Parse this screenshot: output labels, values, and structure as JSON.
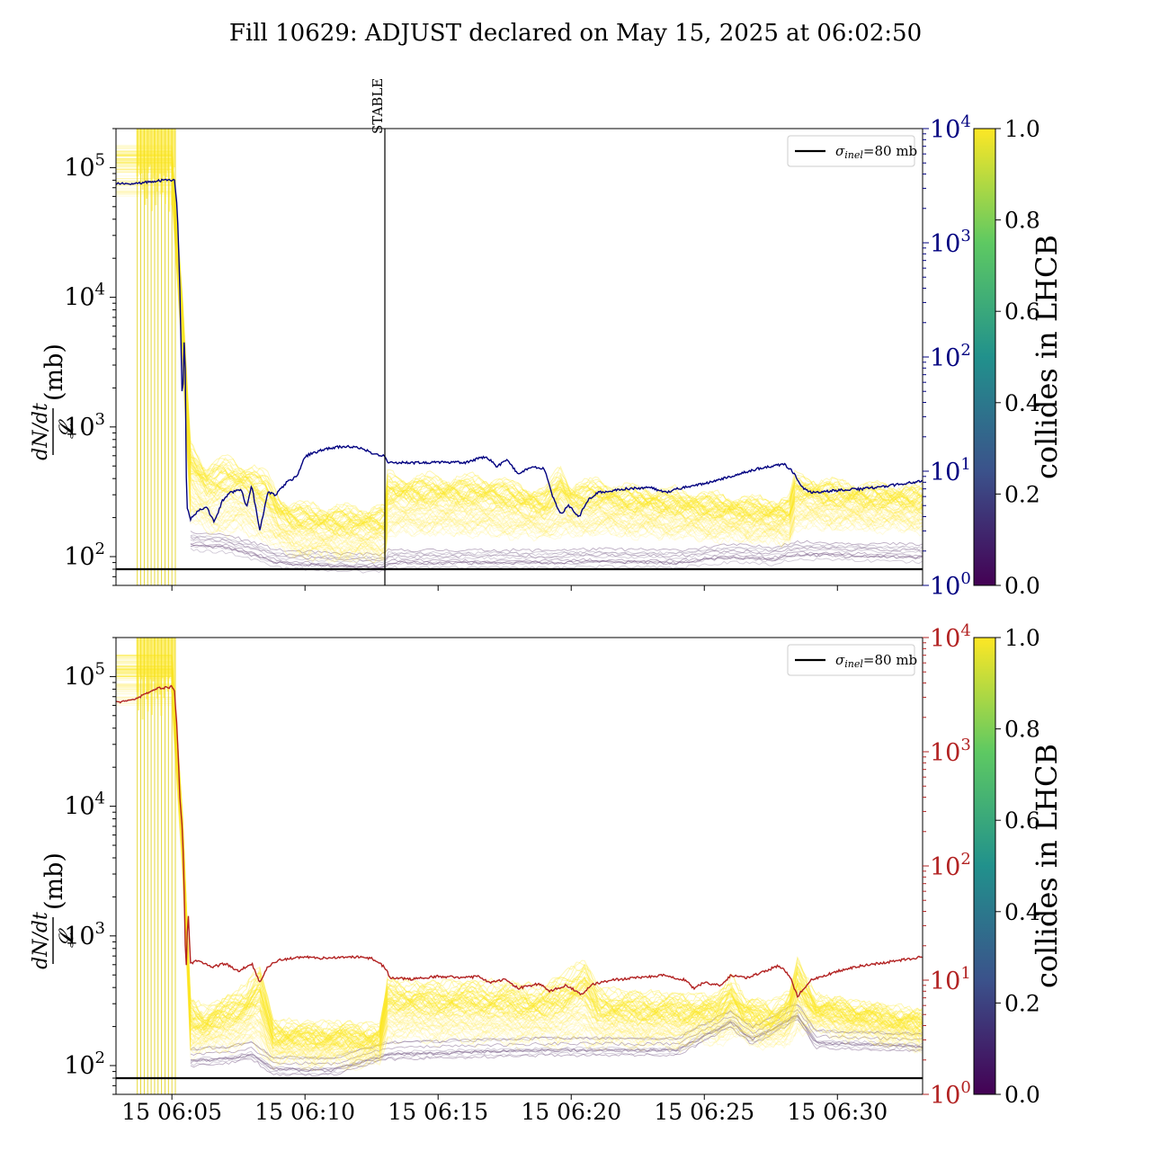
{
  "title": "Fill 10629: ADJUST declared on May 15, 2025 at 06:02:50",
  "colors": {
    "top_luminosity_line": "#000080",
    "bottom_luminosity_line": "#b22222",
    "reference_line": "#000000",
    "bunch_colormap_high": "#fde725",
    "bunch_colormap_low": "#440154",
    "stable_marker": "#000000"
  },
  "colorbar": {
    "label": "collides in LHCB",
    "ticks": [
      "0.0",
      "0.2",
      "0.4",
      "0.6",
      "0.8",
      "1.0"
    ],
    "colormap": "viridis"
  },
  "chart_data": [
    {
      "type": "line",
      "panel": "top",
      "ylabel_fraction_num": "dN/dt",
      "ylabel_fraction_den": "𝓛",
      "ylabel_unit": "(mb)",
      "yscale": "log",
      "ylim": [
        60,
        200000
      ],
      "y_ticks": [
        {
          "value": 100,
          "base": "10",
          "exp": "2"
        },
        {
          "value": 1000,
          "base": "10",
          "exp": "3"
        },
        {
          "value": 10000,
          "base": "10",
          "exp": "4"
        },
        {
          "value": 100000,
          "base": "10",
          "exp": "5"
        }
      ],
      "y2scale": "log",
      "y2lim": [
        1,
        10000
      ],
      "y2_color": "#000080",
      "y2_ticks": [
        {
          "value": 1,
          "base": "10",
          "exp": "0"
        },
        {
          "value": 10,
          "base": "10",
          "exp": "1"
        },
        {
          "value": 100,
          "base": "10",
          "exp": "2"
        },
        {
          "value": 1000,
          "base": "10",
          "exp": "3"
        },
        {
          "value": 10000,
          "base": "10",
          "exp": "4"
        }
      ],
      "xlim_minutes": [
        2.9,
        33.2
      ],
      "x_ticks": [
        {
          "minute": 5,
          "label": ""
        },
        {
          "minute": 10,
          "label": ""
        },
        {
          "minute": 15,
          "label": ""
        },
        {
          "minute": 20,
          "label": ""
        },
        {
          "minute": 25,
          "label": ""
        },
        {
          "minute": 30,
          "label": ""
        }
      ],
      "reference_line": {
        "y": 80,
        "legend": "σ_inel=80 mb",
        "legend_main": "σ",
        "legend_sub": "inel",
        "legend_rest": "=80 mb"
      },
      "vertical_marker": {
        "minute": 13.0,
        "label": "STABLE"
      },
      "luminosity_series_y2": [
        [
          2.9,
          3300
        ],
        [
          3.5,
          3250
        ],
        [
          4.0,
          3400
        ],
        [
          4.5,
          3500
        ],
        [
          5.0,
          3550
        ],
        [
          5.1,
          3500
        ],
        [
          5.2,
          2000
        ],
        [
          5.3,
          400
        ],
        [
          5.4,
          30
        ],
        [
          5.45,
          150
        ],
        [
          5.5,
          80
        ],
        [
          5.55,
          5
        ],
        [
          5.7,
          3.8
        ],
        [
          6.0,
          4.5
        ],
        [
          6.3,
          4.8
        ],
        [
          6.6,
          3.6
        ],
        [
          6.9,
          5.5
        ],
        [
          7.2,
          6.5
        ],
        [
          7.6,
          7.0
        ],
        [
          7.8,
          4.8
        ],
        [
          8.0,
          7.5
        ],
        [
          8.3,
          3.0
        ],
        [
          8.6,
          6.5
        ],
        [
          8.9,
          6.2
        ],
        [
          9.3,
          8.0
        ],
        [
          9.7,
          9.0
        ],
        [
          10.0,
          13.5
        ],
        [
          10.5,
          15.0
        ],
        [
          11.0,
          16.0
        ],
        [
          11.5,
          16.5
        ],
        [
          12.0,
          16.2
        ],
        [
          12.5,
          14.5
        ],
        [
          13.0,
          13.5
        ],
        [
          13.1,
          12.0
        ],
        [
          14.0,
          11.8
        ],
        [
          15.0,
          12.0
        ],
        [
          16.0,
          11.9
        ],
        [
          16.8,
          13.5
        ],
        [
          17.2,
          11.0
        ],
        [
          17.6,
          12.5
        ],
        [
          18.0,
          9.5
        ],
        [
          18.5,
          11.0
        ],
        [
          19.0,
          10.5
        ],
        [
          19.3,
          6.0
        ],
        [
          19.6,
          4.2
        ],
        [
          19.9,
          5.0
        ],
        [
          20.3,
          4.0
        ],
        [
          20.6,
          5.5
        ],
        [
          21.0,
          6.5
        ],
        [
          22.0,
          7.0
        ],
        [
          23.0,
          7.2
        ],
        [
          23.5,
          6.5
        ],
        [
          24.0,
          7.0
        ],
        [
          25.0,
          7.8
        ],
        [
          26.0,
          9.0
        ],
        [
          27.0,
          10.5
        ],
        [
          28.0,
          11.5
        ],
        [
          28.3,
          10.0
        ],
        [
          28.7,
          7.2
        ],
        [
          29.0,
          6.5
        ],
        [
          30.0,
          6.8
        ],
        [
          31.0,
          7.0
        ],
        [
          32.0,
          7.5
        ],
        [
          33.2,
          8.2
        ]
      ],
      "bunch_band_typical": [
        [
          2.9,
          120000
        ],
        [
          5.0,
          120000
        ],
        [
          5.4,
          8000
        ],
        [
          5.7,
          600
        ],
        [
          6.3,
          400
        ],
        [
          7.0,
          450
        ],
        [
          8.0,
          400
        ],
        [
          8.6,
          330
        ],
        [
          9.0,
          230
        ],
        [
          9.5,
          200
        ],
        [
          10.5,
          190
        ],
        [
          12.0,
          185
        ],
        [
          13.0,
          190
        ],
        [
          13.1,
          330
        ],
        [
          15.0,
          320
        ],
        [
          17.0,
          320
        ],
        [
          18.0,
          280
        ],
        [
          19.0,
          250
        ],
        [
          19.6,
          380
        ],
        [
          20.0,
          280
        ],
        [
          21.0,
          300
        ],
        [
          22.0,
          270
        ],
        [
          24.0,
          250
        ],
        [
          25.5,
          230
        ],
        [
          26.5,
          220
        ],
        [
          27.5,
          210
        ],
        [
          28.2,
          220
        ],
        [
          28.4,
          330
        ],
        [
          29.5,
          300
        ],
        [
          31.0,
          280
        ],
        [
          33.2,
          270
        ]
      ],
      "bunch_band_low": [
        [
          2.9,
          60000
        ],
        [
          5.0,
          60000
        ],
        [
          5.4,
          3000
        ],
        [
          5.7,
          200
        ],
        [
          6.5,
          160
        ],
        [
          7.5,
          170
        ],
        [
          8.5,
          140
        ],
        [
          9.5,
          110
        ],
        [
          11.0,
          100
        ],
        [
          13.0,
          100
        ],
        [
          13.1,
          160
        ],
        [
          16.0,
          160
        ],
        [
          19.0,
          150
        ],
        [
          21.0,
          160
        ],
        [
          24.0,
          150
        ],
        [
          27.0,
          140
        ],
        [
          28.2,
          135
        ],
        [
          28.4,
          180
        ],
        [
          33.2,
          170
        ]
      ],
      "non_colliding_band": [
        [
          5.7,
          130
        ],
        [
          7.0,
          125
        ],
        [
          8.0,
          110
        ],
        [
          9.0,
          95
        ],
        [
          11.0,
          90
        ],
        [
          13.0,
          88
        ],
        [
          13.1,
          95
        ],
        [
          16.0,
          95
        ],
        [
          19.0,
          95
        ],
        [
          21.0,
          97
        ],
        [
          24.0,
          95
        ],
        [
          26.0,
          105
        ],
        [
          27.5,
          100
        ],
        [
          28.4,
          110
        ],
        [
          33.2,
          105
        ]
      ]
    },
    {
      "type": "line",
      "panel": "bottom",
      "ylabel_fraction_num": "dN/dt",
      "ylabel_fraction_den": "𝓛",
      "ylabel_unit": "(mb)",
      "yscale": "log",
      "ylim": [
        60,
        200000
      ],
      "y_ticks": [
        {
          "value": 100,
          "base": "10",
          "exp": "2"
        },
        {
          "value": 1000,
          "base": "10",
          "exp": "3"
        },
        {
          "value": 10000,
          "base": "10",
          "exp": "4"
        },
        {
          "value": 100000,
          "base": "10",
          "exp": "5"
        }
      ],
      "y2scale": "log",
      "y2lim": [
        1,
        10000
      ],
      "y2_color": "#b22222",
      "y2_ticks": [
        {
          "value": 1,
          "base": "10",
          "exp": "0"
        },
        {
          "value": 10,
          "base": "10",
          "exp": "1"
        },
        {
          "value": 100,
          "base": "10",
          "exp": "2"
        },
        {
          "value": 1000,
          "base": "10",
          "exp": "3"
        },
        {
          "value": 10000,
          "base": "10",
          "exp": "4"
        }
      ],
      "xlim_minutes": [
        2.9,
        33.2
      ],
      "x_ticks": [
        {
          "minute": 5,
          "label": "15 06:05"
        },
        {
          "minute": 10,
          "label": "15 06:10"
        },
        {
          "minute": 15,
          "label": "15 06:15"
        },
        {
          "minute": 20,
          "label": "15 06:20"
        },
        {
          "minute": 25,
          "label": "15 06:25"
        },
        {
          "minute": 30,
          "label": "15 06:30"
        }
      ],
      "reference_line": {
        "y": 80,
        "legend": "σ_inel=80 mb",
        "legend_main": "σ",
        "legend_sub": "inel",
        "legend_rest": "=80 mb"
      },
      "luminosity_series_y2": [
        [
          2.9,
          2700
        ],
        [
          3.5,
          2800
        ],
        [
          4.0,
          3200
        ],
        [
          4.5,
          3600
        ],
        [
          5.0,
          3700
        ],
        [
          5.1,
          3400
        ],
        [
          5.2,
          1500
        ],
        [
          5.3,
          400
        ],
        [
          5.4,
          200
        ],
        [
          5.45,
          80
        ],
        [
          5.5,
          20
        ],
        [
          5.55,
          12
        ],
        [
          5.6,
          45
        ],
        [
          5.7,
          14
        ],
        [
          6.0,
          15
        ],
        [
          6.5,
          13
        ],
        [
          7.0,
          14
        ],
        [
          7.5,
          12
        ],
        [
          8.0,
          14
        ],
        [
          8.3,
          9.5
        ],
        [
          8.6,
          13
        ],
        [
          9.0,
          15
        ],
        [
          10.0,
          16
        ],
        [
          10.5,
          15.5
        ],
        [
          11.0,
          15.8
        ],
        [
          12.0,
          16
        ],
        [
          12.5,
          15.5
        ],
        [
          13.0,
          13
        ],
        [
          13.2,
          10.5
        ],
        [
          14.0,
          10.2
        ],
        [
          15.0,
          10.8
        ],
        [
          16.0,
          10.5
        ],
        [
          16.5,
          10.8
        ],
        [
          17.0,
          9.5
        ],
        [
          17.5,
          10.2
        ],
        [
          18.0,
          8.5
        ],
        [
          18.8,
          9.3
        ],
        [
          19.2,
          8.0
        ],
        [
          19.8,
          9.0
        ],
        [
          20.4,
          7.5
        ],
        [
          20.8,
          9.2
        ],
        [
          21.5,
          10.0
        ],
        [
          22.5,
          10.5
        ],
        [
          23.5,
          11.0
        ],
        [
          24.3,
          10.0
        ],
        [
          24.6,
          8.5
        ],
        [
          25.0,
          9.5
        ],
        [
          25.6,
          9.0
        ],
        [
          26.0,
          11.0
        ],
        [
          26.6,
          10.5
        ],
        [
          27.3,
          12.0
        ],
        [
          27.8,
          13.5
        ],
        [
          28.2,
          11.0
        ],
        [
          28.5,
          7.2
        ],
        [
          29.0,
          10.0
        ],
        [
          30.0,
          12.0
        ],
        [
          31.0,
          13.5
        ],
        [
          32.0,
          14.5
        ],
        [
          33.2,
          16.0
        ]
      ],
      "bunch_band_typical": [
        [
          2.9,
          120000
        ],
        [
          5.0,
          120000
        ],
        [
          5.4,
          7000
        ],
        [
          5.7,
          250
        ],
        [
          6.2,
          210
        ],
        [
          7.0,
          250
        ],
        [
          7.8,
          320
        ],
        [
          8.3,
          450
        ],
        [
          8.8,
          170
        ],
        [
          10.0,
          160
        ],
        [
          11.5,
          160
        ],
        [
          12.8,
          155
        ],
        [
          13.1,
          350
        ],
        [
          14.5,
          330
        ],
        [
          16.0,
          340
        ],
        [
          17.5,
          330
        ],
        [
          19.0,
          310
        ],
        [
          20.5,
          500
        ],
        [
          21.0,
          300
        ],
        [
          22.0,
          280
        ],
        [
          24.0,
          270
        ],
        [
          25.5,
          260
        ],
        [
          26.0,
          380
        ],
        [
          26.5,
          250
        ],
        [
          27.5,
          230
        ],
        [
          28.2,
          280
        ],
        [
          28.5,
          500
        ],
        [
          29.2,
          260
        ],
        [
          31.0,
          230
        ],
        [
          33.2,
          200
        ]
      ],
      "bunch_band_low": [
        [
          2.9,
          60000
        ],
        [
          5.0,
          60000
        ],
        [
          5.4,
          3000
        ],
        [
          5.7,
          130
        ],
        [
          7.0,
          140
        ],
        [
          8.0,
          150
        ],
        [
          8.8,
          110
        ],
        [
          10.5,
          105
        ],
        [
          12.8,
          105
        ],
        [
          13.1,
          170
        ],
        [
          16.0,
          160
        ],
        [
          19.0,
          155
        ],
        [
          21.0,
          150
        ],
        [
          24.0,
          145
        ],
        [
          26.0,
          170
        ],
        [
          28.0,
          140
        ],
        [
          28.5,
          200
        ],
        [
          33.2,
          140
        ]
      ],
      "non_colliding_band": [
        [
          5.7,
          115
        ],
        [
          7.0,
          120
        ],
        [
          8.0,
          130
        ],
        [
          8.8,
          100
        ],
        [
          11.0,
          98
        ],
        [
          13.1,
          130
        ],
        [
          16.0,
          135
        ],
        [
          19.0,
          140
        ],
        [
          21.0,
          140
        ],
        [
          24.0,
          140
        ],
        [
          26.0,
          230
        ],
        [
          26.8,
          170
        ],
        [
          28.5,
          260
        ],
        [
          29.2,
          160
        ],
        [
          33.2,
          150
        ]
      ]
    }
  ]
}
